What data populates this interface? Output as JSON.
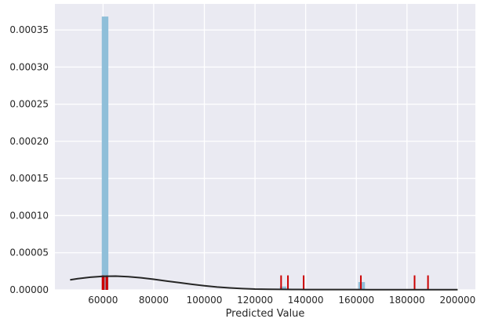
{
  "chart_data": {
    "type": "bar",
    "title": "",
    "xlabel": "Predicted Value",
    "ylabel": "",
    "xlim": [
      41000,
      207000
    ],
    "ylim": [
      0,
      0.000385
    ],
    "xticks": [
      60000,
      80000,
      100000,
      120000,
      140000,
      160000,
      180000,
      200000
    ],
    "xtick_labels": [
      "60000",
      "80000",
      "100000",
      "120000",
      "140000",
      "160000",
      "180000",
      "200000"
    ],
    "yticks": [
      0.0,
      5e-05,
      0.0001,
      0.00015,
      0.0002,
      0.00025,
      0.0003,
      0.00035
    ],
    "ytick_labels": [
      "0.00000",
      "0.00005",
      "0.00010",
      "0.00015",
      "0.00020",
      "0.00025",
      "0.00030",
      "0.00035"
    ],
    "grid": true,
    "colors": {
      "background": "#eaeaf2",
      "grid": "#ffffff",
      "hist": "#8fbfd9",
      "kde": "#262626",
      "rug": "#cc0000"
    },
    "histogram": [
      {
        "x0": 59500,
        "x1": 62100,
        "density": 0.000368
      },
      {
        "x0": 129800,
        "x1": 132400,
        "density": 4.5e-06
      },
      {
        "x0": 160800,
        "x1": 163400,
        "density": 1.05e-05
      }
    ],
    "kde": {
      "x": [
        47000,
        50000,
        55000,
        60000,
        65000,
        70000,
        75000,
        80000,
        85000,
        90000,
        95000,
        100000,
        105000,
        110000,
        115000,
        120000,
        125000,
        130000,
        135000,
        140000,
        145000,
        150000,
        155000,
        160000,
        165000,
        170000,
        175000,
        180000,
        185000,
        190000,
        195000,
        200000
      ],
      "y": [
        1.35e-05,
        1.5e-05,
        1.7e-05,
        1.83e-05,
        1.85e-05,
        1.78e-05,
        1.63e-05,
        1.43e-05,
        1.2e-05,
        9.7e-06,
        7.5e-06,
        5.5e-06,
        3.8e-06,
        2.6e-06,
        1.7e-06,
        1.1e-06,
        8e-07,
        6e-07,
        5e-07,
        4e-07,
        4e-07,
        4e-07,
        4e-07,
        4e-07,
        3e-07,
        3e-07,
        3e-07,
        3e-07,
        2e-07,
        2e-07,
        2e-07,
        2e-07
      ]
    },
    "rug": [
      59800,
      60300,
      61300,
      61700,
      130300,
      133000,
      139200,
      161800,
      183000,
      188300
    ],
    "rug_height": 1.95e-05
  }
}
